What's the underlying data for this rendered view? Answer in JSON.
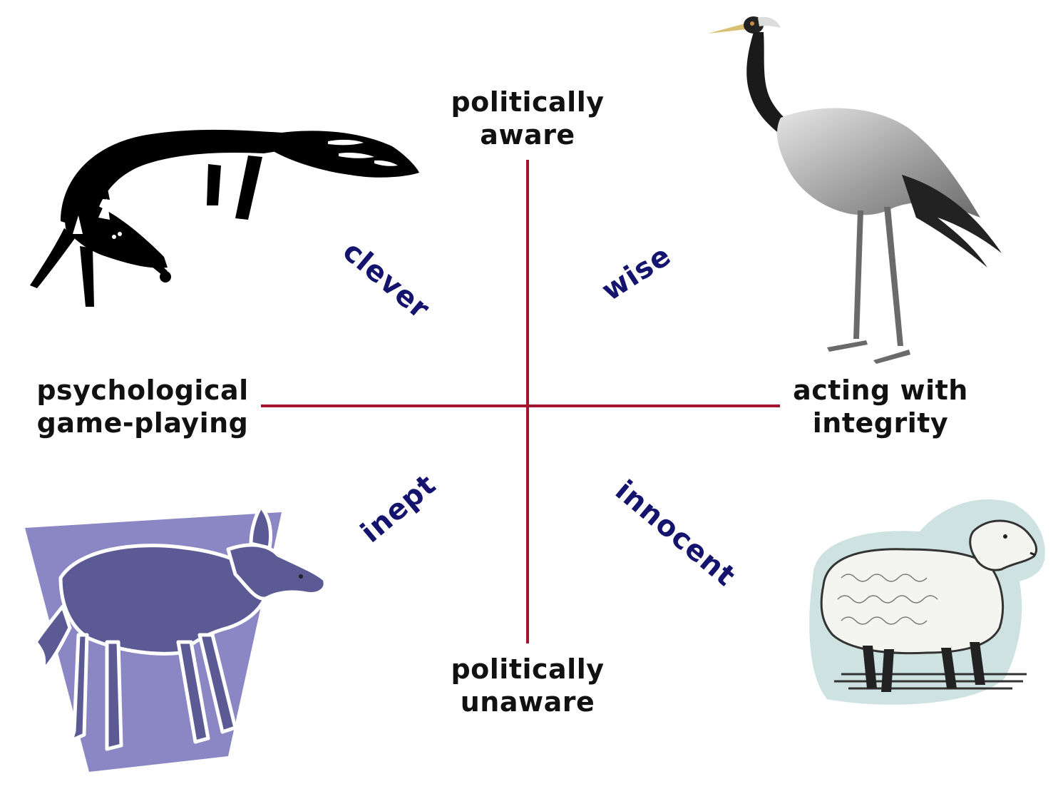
{
  "axes": {
    "top": [
      "politically",
      "aware"
    ],
    "bottom": [
      "politically",
      "unaware"
    ],
    "left": [
      "psychological",
      "game-playing"
    ],
    "right": [
      "acting with",
      "integrity"
    ]
  },
  "quadrants": {
    "top_left": "clever",
    "top_right": "wise",
    "bottom_left": "inept",
    "bottom_right": "innocent"
  },
  "pictures": {
    "top_left": "fox-icon",
    "top_right": "crane-icon",
    "bottom_left": "donkey-icon",
    "bottom_right": "sheep-icon"
  },
  "colors": {
    "axis_line": "#a0142e",
    "quadrant_label": "#14146e",
    "pole_label": "#111111"
  }
}
